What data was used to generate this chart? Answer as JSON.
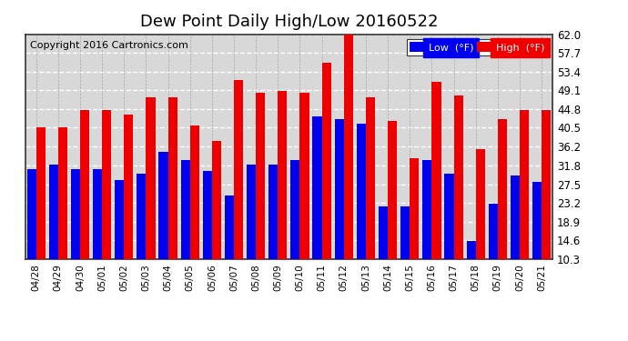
{
  "title": "Dew Point Daily High/Low 20160522",
  "copyright": "Copyright 2016 Cartronics.com",
  "categories": [
    "04/28",
    "04/29",
    "04/30",
    "05/01",
    "05/02",
    "05/03",
    "05/04",
    "05/05",
    "05/06",
    "05/07",
    "05/08",
    "05/09",
    "05/10",
    "05/11",
    "05/12",
    "05/13",
    "05/14",
    "05/15",
    "05/16",
    "05/17",
    "05/18",
    "05/19",
    "05/20",
    "05/21"
  ],
  "low_values": [
    31.0,
    32.0,
    31.0,
    31.0,
    28.5,
    30.0,
    35.0,
    33.0,
    30.5,
    25.0,
    32.0,
    32.0,
    33.0,
    43.0,
    42.5,
    41.5,
    22.5,
    22.5,
    33.0,
    30.0,
    14.5,
    23.0,
    29.5,
    28.0
  ],
  "high_values": [
    40.5,
    40.5,
    44.5,
    44.5,
    43.5,
    47.5,
    47.5,
    41.0,
    37.5,
    51.5,
    48.5,
    49.0,
    48.5,
    55.5,
    62.0,
    47.5,
    42.0,
    33.5,
    51.0,
    48.0,
    35.5,
    42.5,
    44.5,
    44.5
  ],
  "ylim": [
    10.3,
    62.0
  ],
  "ybase": 10.3,
  "yticks": [
    10.3,
    14.6,
    18.9,
    23.2,
    27.5,
    31.8,
    36.2,
    40.5,
    44.8,
    49.1,
    53.4,
    57.7,
    62.0
  ],
  "low_color": "#0000ee",
  "high_color": "#ee0000",
  "bg_color": "#ffffff",
  "plot_bg_color": "#d8d8d8",
  "grid_color_h": "#ffffff",
  "grid_color_v": "#aaaaaa",
  "title_fontsize": 13,
  "copyright_fontsize": 8,
  "legend_label_low": "Low  (°F)",
  "legend_label_high": "High  (°F)",
  "legend_low_bg": "#0000ee",
  "legend_high_bg": "#ee0000"
}
